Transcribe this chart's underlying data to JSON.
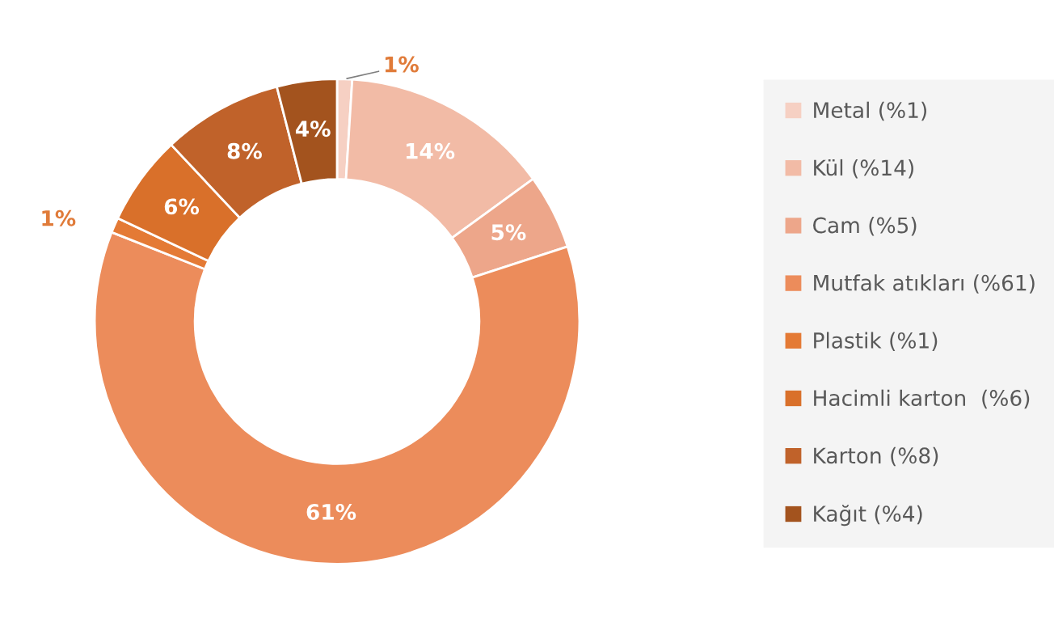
{
  "chart_data": {
    "type": "donut",
    "categories": [
      "Metal (%1)",
      "Kül (%14)",
      "Cam (%5)",
      "Mutfak atıkları (%61)",
      "Plastik (%1)",
      "Hacimli karton  (%6)",
      "Karton (%8)",
      "Kağıt (%4)"
    ],
    "values": [
      1,
      14,
      5,
      61,
      1,
      6,
      8,
      4
    ],
    "colors": [
      "#f6d0c3",
      "#f2bba6",
      "#eda68a",
      "#ec8c5b",
      "#e47a35",
      "#d9702a",
      "#c0622a",
      "#a3531e"
    ],
    "value_labels": [
      "1%",
      "14%",
      "5%",
      "61%",
      "1%",
      "6%",
      "8%",
      "4%"
    ],
    "legend": "right"
  }
}
